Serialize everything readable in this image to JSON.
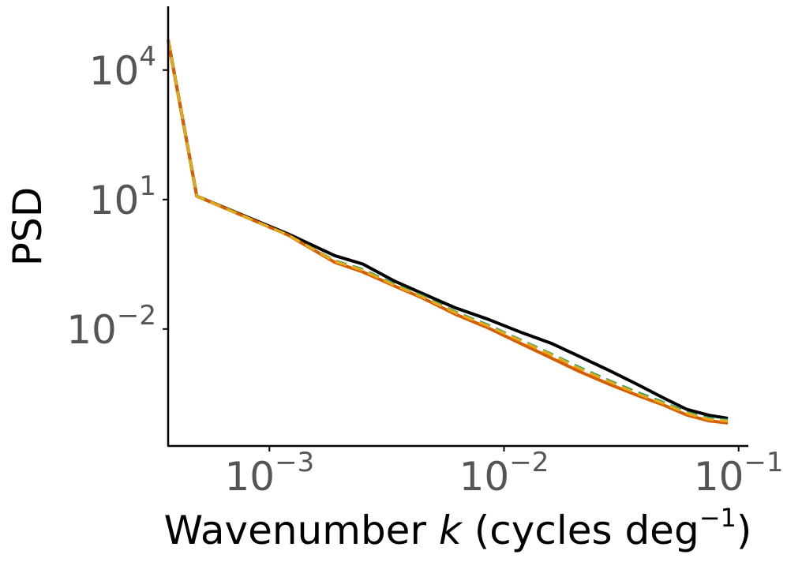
{
  "chart_data": {
    "type": "line",
    "title": "",
    "xlabel": {
      "text": "Wavenumber ",
      "var": "k",
      "rest": " (cycles deg",
      "sup": "−1",
      "close": ")"
    },
    "ylabel": "PSD",
    "xscale": "log",
    "yscale": "log",
    "xlim": [
      0.00037,
      0.11
    ],
    "ylim": [
      1.95e-05,
      300000
    ],
    "grid": false,
    "legend": "none",
    "xticks": [
      {
        "value": 0.001,
        "base": "10",
        "exp": "−3"
      },
      {
        "value": 0.01,
        "base": "10",
        "exp": "−2"
      },
      {
        "value": 0.1,
        "base": "10",
        "exp": "−1"
      }
    ],
    "yticks": [
      {
        "value": 10000,
        "base": "10",
        "exp": "4"
      },
      {
        "value": 10,
        "base": "10",
        "exp": "1"
      },
      {
        "value": 0.01,
        "base": "10",
        "exp": "−2"
      }
    ],
    "series": [
      {
        "name": "black",
        "color": "#000000",
        "dash": "solid",
        "x": [
          0.00037,
          0.00049,
          0.0012,
          0.0019,
          0.0025,
          0.0034,
          0.0045,
          0.0062,
          0.0085,
          0.012,
          0.016,
          0.021,
          0.028,
          0.037,
          0.048,
          0.06,
          0.075,
          0.09
        ],
        "y": [
          50000,
          12,
          1.6,
          0.5,
          0.32,
          0.13,
          0.066,
          0.031,
          0.017,
          0.0081,
          0.0046,
          0.0023,
          0.0011,
          0.00052,
          0.00025,
          0.000138,
          0.0001,
          8.5e-05
        ]
      },
      {
        "name": "orange",
        "color": "#d55e00",
        "dash": "solid",
        "x": [
          0.00037,
          0.00049,
          0.0012,
          0.0019,
          0.0025,
          0.0034,
          0.0045,
          0.0062,
          0.0085,
          0.012,
          0.016,
          0.021,
          0.028,
          0.037,
          0.048,
          0.06,
          0.075,
          0.09
        ],
        "y": [
          50000,
          12,
          1.5,
          0.35,
          0.21,
          0.1,
          0.052,
          0.022,
          0.0108,
          0.0044,
          0.0021,
          0.00103,
          0.00053,
          0.00029,
          0.000172,
          0.000102,
          7.4e-05,
          6.65e-05
        ]
      },
      {
        "name": "teal",
        "color": "#009e73",
        "dash": "dashed",
        "x": [
          0.00037,
          0.00049,
          0.0012,
          0.0019,
          0.0025,
          0.0034,
          0.0045,
          0.0062,
          0.0085,
          0.012,
          0.016,
          0.021,
          0.028,
          0.037,
          0.048,
          0.06,
          0.075,
          0.09
        ],
        "y": [
          50000,
          12,
          1.5,
          0.38,
          0.24,
          0.11,
          0.058,
          0.025,
          0.0125,
          0.0053,
          0.0026,
          0.00128,
          0.00064,
          0.00034,
          0.000198,
          0.000118,
          8.6e-05,
          7.75e-05
        ]
      },
      {
        "name": "yellow",
        "color": "#e6a817",
        "dash": "dashed",
        "x": [
          0.00037,
          0.00049,
          0.0012,
          0.0019,
          0.0025,
          0.0034,
          0.0045,
          0.0062,
          0.0085,
          0.012,
          0.016,
          0.021,
          0.028,
          0.037,
          0.048,
          0.06,
          0.075,
          0.09
        ],
        "y": [
          50000,
          12,
          1.5,
          0.37,
          0.23,
          0.105,
          0.055,
          0.024,
          0.012,
          0.0051,
          0.0025,
          0.00122,
          0.00061,
          0.00032,
          0.000188,
          0.000112,
          8.1e-05,
          7.35e-05
        ]
      }
    ]
  }
}
